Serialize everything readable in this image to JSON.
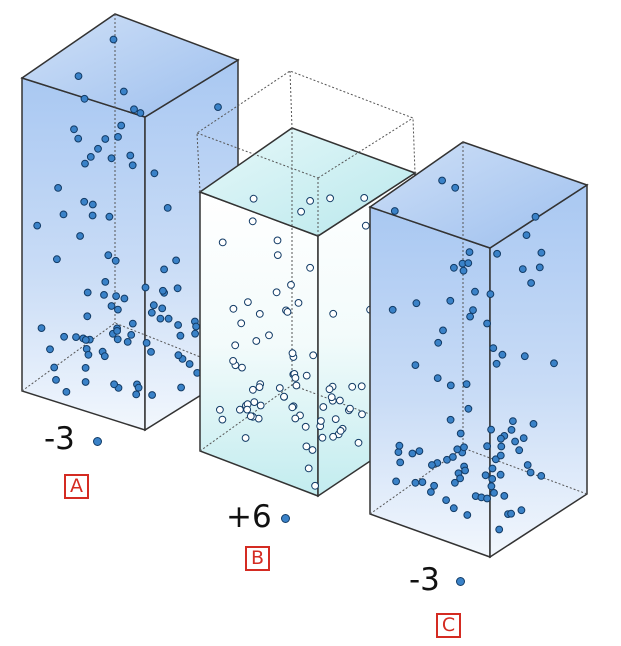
{
  "colors": {
    "dot_fill": "#3a82c8",
    "dot_stroke": "#123b66",
    "hollow_fill": "#ffffff",
    "box_edge": "#333333",
    "label_red": "#d42b22"
  },
  "containers": [
    {
      "id": "A",
      "label": "A",
      "count": "-3",
      "particle_style": "filled",
      "fill": "blue"
    },
    {
      "id": "B",
      "label": "B",
      "count": "+6",
      "particle_style": "hollow",
      "fill": "cyan",
      "lowered_level": true
    },
    {
      "id": "C",
      "label": "C",
      "count": "-3",
      "particle_style": "filled",
      "fill": "blue"
    }
  ]
}
